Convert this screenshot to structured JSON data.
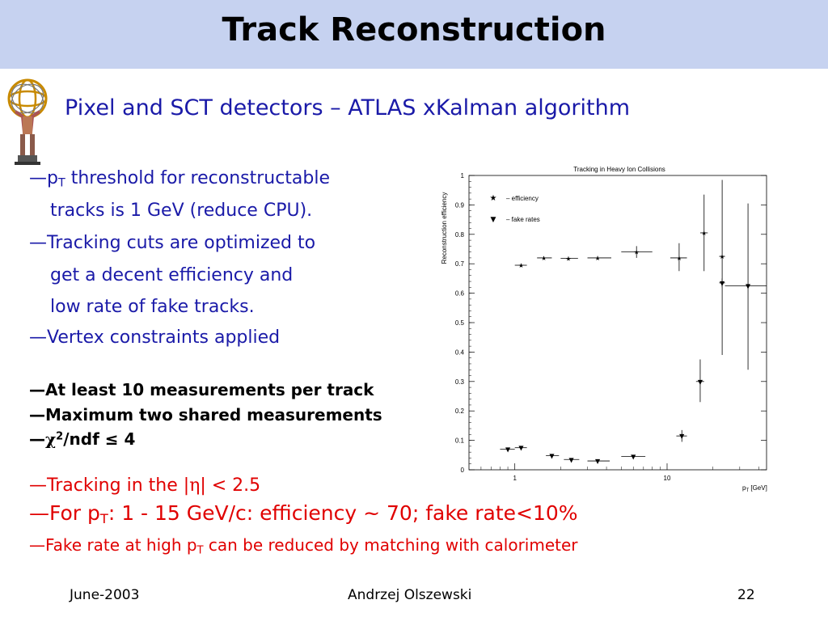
{
  "title": "Track Reconstruction",
  "subtitle": "Pixel and SCT detectors – ATLAS xKalman algorithm",
  "bullet_marker": "—",
  "group1": [
    {
      "pre": "p",
      "sub": "T",
      "post": " threshold for reconstructable"
    },
    {
      "text": "tracks is 1 GeV (reduce CPU)."
    },
    {
      "text": "Tracking cuts are optimized to"
    },
    {
      "text": "get a decent efficiency  and"
    },
    {
      "text": "low rate of fake tracks."
    },
    {
      "text": "Vertex constraints applied"
    }
  ],
  "group2": [
    {
      "text": "At least 10 measurements per track"
    },
    {
      "text": "Maximum two shared measurements"
    },
    {
      "chi": "χ",
      "sup": "2",
      "post": "/ndf ≤ 4"
    }
  ],
  "group3": [
    {
      "pre": "Tracking in the |",
      "eta": "η",
      "post": "| < 2.5"
    },
    {
      "pre": "For p",
      "sub": "T",
      "post": ": 1 - 15 GeV/c: efficiency ~ 70; fake rate<10%"
    },
    {
      "pre": "Fake rate at high p",
      "sub": "T",
      "post": " can be reduced by matching with calorimeter"
    }
  ],
  "footer": {
    "date": "June-2003",
    "author": "Andrzej Olszewski",
    "page": "22"
  },
  "chart_data": {
    "type": "scatter",
    "title": "Tracking in Heavy Ion Collisions",
    "ylabel": "Reconstruction efficiency",
    "xlabel": "p_T [GeV]",
    "xlabel_main": "p",
    "xlabel_sub": "T",
    "xlabel_unit": " [GeV]",
    "xscale": "log",
    "xlim": [
      0.5,
      45
    ],
    "ylim": [
      0,
      1
    ],
    "y_ticks": [
      "0",
      "0.1",
      "0.2",
      "0.3",
      "0.4",
      "0.5",
      "0.6",
      "0.7",
      "0.8",
      "0.9",
      "1"
    ],
    "x_tick_labels": [
      "1",
      "10"
    ],
    "legend_position": "top-left",
    "series": [
      {
        "name": "efficiency",
        "legend_label": "– efficiency",
        "marker": "star",
        "points": [
          {
            "x": 1.1,
            "y": 0.695,
            "xlo": 1.0,
            "xhi": 1.2,
            "ylo": 0.69,
            "yhi": 0.7
          },
          {
            "x": 1.55,
            "y": 0.72,
            "xlo": 1.4,
            "xhi": 1.75,
            "ylo": 0.715,
            "yhi": 0.725
          },
          {
            "x": 2.25,
            "y": 0.718,
            "xlo": 2.0,
            "xhi": 2.6,
            "ylo": 0.712,
            "yhi": 0.724
          },
          {
            "x": 3.5,
            "y": 0.72,
            "xlo": 3.0,
            "xhi": 4.3,
            "ylo": 0.714,
            "yhi": 0.726
          },
          {
            "x": 6.3,
            "y": 0.74,
            "xlo": 5.0,
            "xhi": 8.0,
            "ylo": 0.72,
            "yhi": 0.76
          },
          {
            "x": 12.0,
            "y": 0.72,
            "xlo": 10.5,
            "xhi": 13.5,
            "ylo": 0.675,
            "yhi": 0.77
          },
          {
            "x": 17.5,
            "y": 0.805,
            "xlo": 16.5,
            "xhi": 18.5,
            "ylo": 0.675,
            "yhi": 0.935
          },
          {
            "x": 23.0,
            "y": 0.725,
            "xlo": 22.0,
            "xhi": 24.0,
            "ylo": 0.39,
            "yhi": 0.985
          }
        ]
      },
      {
        "name": "fake rates",
        "legend_label": "– fake rates",
        "marker": "triangle-down",
        "points": [
          {
            "x": 0.9,
            "y": 0.07,
            "xlo": 0.8,
            "xhi": 1.0,
            "ylo": 0.065,
            "yhi": 0.075
          },
          {
            "x": 1.1,
            "y": 0.075,
            "xlo": 1.0,
            "xhi": 1.2,
            "ylo": 0.07,
            "yhi": 0.08
          },
          {
            "x": 1.75,
            "y": 0.048,
            "xlo": 1.6,
            "xhi": 1.95,
            "ylo": 0.044,
            "yhi": 0.052
          },
          {
            "x": 2.35,
            "y": 0.035,
            "xlo": 2.1,
            "xhi": 2.65,
            "ylo": 0.031,
            "yhi": 0.039
          },
          {
            "x": 3.5,
            "y": 0.03,
            "xlo": 3.0,
            "xhi": 4.2,
            "ylo": 0.026,
            "yhi": 0.034
          },
          {
            "x": 6.0,
            "y": 0.045,
            "xlo": 5.0,
            "xhi": 7.2,
            "ylo": 0.04,
            "yhi": 0.05
          },
          {
            "x": 12.5,
            "y": 0.115,
            "xlo": 11.5,
            "xhi": 13.5,
            "ylo": 0.095,
            "yhi": 0.135
          },
          {
            "x": 16.5,
            "y": 0.3,
            "xlo": 15.5,
            "xhi": 17.5,
            "ylo": 0.23,
            "yhi": 0.375
          },
          {
            "x": 23.0,
            "y": 0.635,
            "xlo": 22.0,
            "xhi": 24.0,
            "ylo": 0.62,
            "yhi": 0.65
          },
          {
            "x": 34.0,
            "y": 0.625,
            "xlo": 24.0,
            "xhi": 45.0,
            "ylo": 0.34,
            "yhi": 0.905
          }
        ]
      }
    ]
  },
  "colors": {
    "title_bar": "#c6d2f0",
    "body_blue": "#1a1aa8",
    "accent_red": "#e00000",
    "chart_ink": "#000000"
  },
  "icons": {
    "logo": "atlas-figure-logo"
  }
}
